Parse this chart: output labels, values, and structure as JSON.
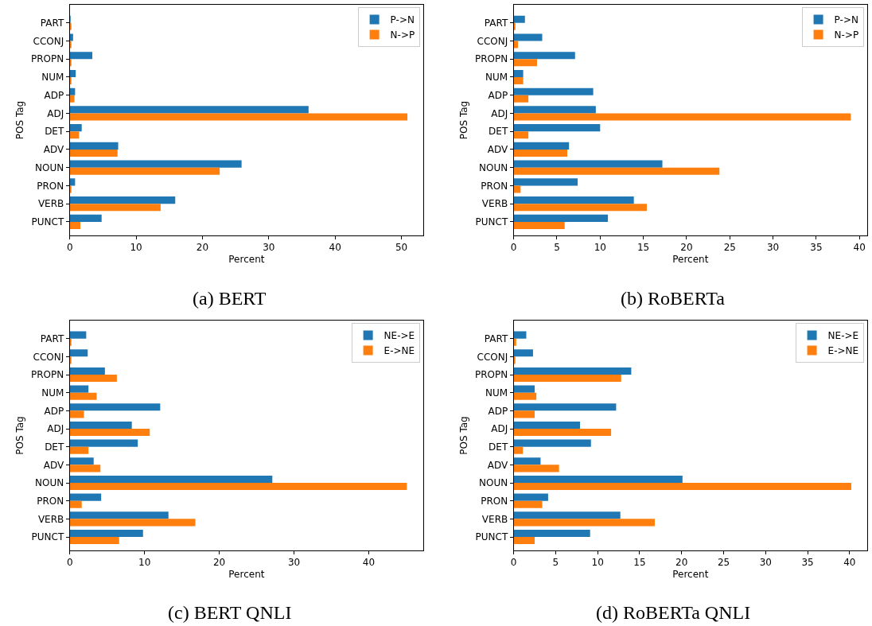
{
  "chart_data": [
    {
      "type": "bar",
      "orientation": "horizontal",
      "title": "(a) BERT",
      "xlabel": "Percent",
      "ylabel": "POS Tag",
      "categories": [
        "PART",
        "CCONJ",
        "PROPN",
        "NUM",
        "ADP",
        "ADJ",
        "DET",
        "ADV",
        "NOUN",
        "PRON",
        "VERB",
        "PUNCT"
      ],
      "xlim": [
        0,
        53.3
      ],
      "xticks": [
        0,
        10,
        20,
        30,
        40,
        50
      ],
      "legend": "top right",
      "series": [
        {
          "name": "P->N",
          "color": "#1f77b4",
          "values": [
            0.1,
            0.5,
            3.4,
            0.9,
            0.8,
            36.0,
            1.8,
            7.3,
            25.9,
            0.8,
            15.9,
            4.8
          ]
        },
        {
          "name": "N->P",
          "color": "#ff7f0e",
          "values": [
            0.2,
            0.2,
            0.2,
            0.2,
            0.7,
            50.9,
            1.4,
            7.2,
            22.6,
            0.2,
            13.7,
            1.6
          ]
        }
      ]
    },
    {
      "type": "bar",
      "orientation": "horizontal",
      "title": "(b) RoBERTa",
      "xlabel": "Percent",
      "ylabel": "POS Tag",
      "categories": [
        "PART",
        "CCONJ",
        "PROPN",
        "NUM",
        "ADP",
        "ADJ",
        "DET",
        "ADV",
        "NOUN",
        "PRON",
        "VERB",
        "PUNCT"
      ],
      "xlim": [
        0,
        40.9
      ],
      "xticks": [
        0,
        5,
        10,
        15,
        20,
        25,
        30,
        35,
        40
      ],
      "legend": "top right",
      "series": [
        {
          "name": "P->N",
          "color": "#1f77b4",
          "values": [
            1.3,
            3.3,
            7.1,
            1.1,
            9.2,
            9.5,
            10.0,
            6.4,
            17.2,
            7.4,
            13.9,
            10.9
          ]
        },
        {
          "name": "N->P",
          "color": "#ff7f0e",
          "values": [
            0.2,
            0.5,
            2.7,
            1.1,
            1.7,
            39.0,
            1.7,
            6.2,
            23.8,
            0.8,
            15.4,
            5.9
          ]
        }
      ]
    },
    {
      "type": "bar",
      "orientation": "horizontal",
      "title": "(c) BERT QNLI",
      "xlabel": "Percent",
      "ylabel": "POS Tag",
      "categories": [
        "PART",
        "CCONJ",
        "PROPN",
        "NUM",
        "ADP",
        "ADJ",
        "DET",
        "ADV",
        "NOUN",
        "PRON",
        "VERB",
        "PUNCT"
      ],
      "xlim": [
        0,
        47.3
      ],
      "xticks": [
        0,
        10,
        20,
        30,
        40
      ],
      "legend": "top right",
      "series": [
        {
          "name": "NE->E",
          "color": "#1f77b4",
          "values": [
            2.2,
            2.4,
            4.7,
            2.5,
            12.1,
            8.3,
            9.1,
            3.2,
            27.1,
            4.2,
            13.2,
            9.8
          ]
        },
        {
          "name": "E->NE",
          "color": "#ff7f0e",
          "values": [
            0.2,
            0.2,
            6.3,
            3.6,
            1.9,
            10.7,
            2.5,
            4.1,
            45.1,
            1.6,
            16.8,
            6.6
          ]
        }
      ]
    },
    {
      "type": "bar",
      "orientation": "horizontal",
      "title": "(d) RoBERTa QNLI",
      "xlabel": "Percent",
      "ylabel": "POS Tag",
      "categories": [
        "PART",
        "CCONJ",
        "PROPN",
        "NUM",
        "ADP",
        "ADJ",
        "DET",
        "ADV",
        "NOUN",
        "PRON",
        "VERB",
        "PUNCT"
      ],
      "xlim": [
        0,
        42.1
      ],
      "xticks": [
        0,
        5,
        10,
        15,
        20,
        25,
        30,
        35,
        40
      ],
      "legend": "top right",
      "series": [
        {
          "name": "NE->E",
          "color": "#1f77b4",
          "values": [
            1.5,
            2.3,
            14.0,
            2.5,
            12.2,
            7.9,
            9.2,
            3.2,
            20.1,
            4.1,
            12.7,
            9.1
          ]
        },
        {
          "name": "E->NE",
          "color": "#ff7f0e",
          "values": [
            0.3,
            0.2,
            12.8,
            2.7,
            2.5,
            11.6,
            1.1,
            5.4,
            40.2,
            3.4,
            16.8,
            2.5
          ]
        }
      ]
    }
  ]
}
